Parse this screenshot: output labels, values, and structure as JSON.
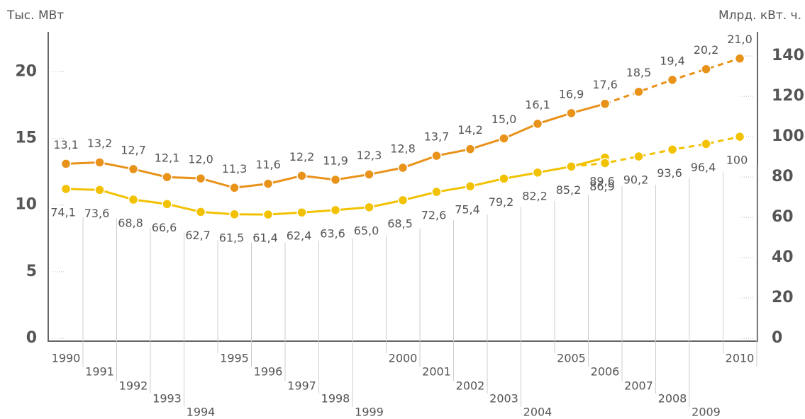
{
  "chart_data": {
    "type": "line",
    "ylabel": "Тыс. МВт",
    "y2label": "Млрд. кВт. ч.",
    "categories": [
      "1990",
      "1991",
      "1992",
      "1993",
      "1994",
      "1995",
      "1996",
      "1997",
      "1998",
      "1999",
      "2000",
      "2001",
      "2002",
      "2003",
      "2004",
      "2005",
      "2006",
      "2007",
      "2008",
      "2009",
      "2010"
    ],
    "ylim": [
      0,
      23
    ],
    "yticks": [
      0,
      5,
      10,
      15,
      20
    ],
    "y2lim": [
      0,
      152
    ],
    "y2ticks": [
      0,
      20,
      40,
      60,
      80,
      100,
      120,
      140
    ],
    "series": [
      {
        "color": "#e8921a",
        "axis": "y",
        "dashed": false,
        "label_side": "above",
        "values": [
          13.1,
          13.2,
          12.7,
          12.1,
          12.0,
          11.3,
          11.6,
          12.2,
          11.9,
          12.3,
          12.8,
          13.7,
          14.2,
          15.0,
          16.1,
          16.9,
          17.6,
          null,
          null,
          null,
          null
        ],
        "value_labels": [
          "13,1",
          "13,2",
          "12,7",
          "12,1",
          "12,0",
          "11,3",
          "11,6",
          "12,2",
          "11,9",
          "12,3",
          "12,8",
          "13,7",
          "14,2",
          "15,0",
          "16,1",
          "16,9",
          "17,6",
          null,
          null,
          null,
          null
        ]
      },
      {
        "color": "#e8921a",
        "axis": "y",
        "dashed": true,
        "label_side": "above",
        "values": [
          null,
          null,
          null,
          null,
          null,
          null,
          null,
          null,
          null,
          null,
          null,
          null,
          null,
          null,
          null,
          null,
          17.6,
          18.5,
          19.4,
          20.2,
          21.0
        ],
        "value_labels": [
          null,
          null,
          null,
          null,
          null,
          null,
          null,
          null,
          null,
          null,
          null,
          null,
          null,
          null,
          null,
          null,
          null,
          "18,5",
          "19,4",
          "20,2",
          "21,0"
        ]
      },
      {
        "color": "#f2c200",
        "axis": "y2",
        "dashed": false,
        "label_side": "below",
        "values": [
          74.1,
          73.6,
          68.8,
          66.6,
          62.7,
          61.5,
          61.4,
          62.4,
          63.6,
          65.0,
          68.5,
          72.6,
          75.4,
          79.2,
          82.2,
          85.2,
          89.6,
          null,
          null,
          null,
          null
        ],
        "value_labels": [
          "74,1",
          "73,6",
          "68,8",
          "66,6",
          "62,7",
          "61,5",
          "61,4",
          "62,4",
          "63,6",
          "65,0",
          "68,5",
          "72,6",
          "75,4",
          "79,2",
          "82,2",
          "85,2",
          "89,6",
          null,
          null,
          null,
          null
        ]
      },
      {
        "color": "#f2c200",
        "axis": "y2",
        "dashed": true,
        "label_side": "below",
        "values": [
          null,
          null,
          null,
          null,
          null,
          null,
          null,
          null,
          null,
          null,
          null,
          null,
          null,
          null,
          null,
          85.2,
          86.9,
          90.2,
          93.6,
          96.4,
          100
        ],
        "value_labels": [
          null,
          null,
          null,
          null,
          null,
          null,
          null,
          null,
          null,
          null,
          null,
          null,
          null,
          null,
          null,
          null,
          "86,9",
          "90,2",
          "93,6",
          "96,4",
          "100"
        ]
      }
    ]
  }
}
